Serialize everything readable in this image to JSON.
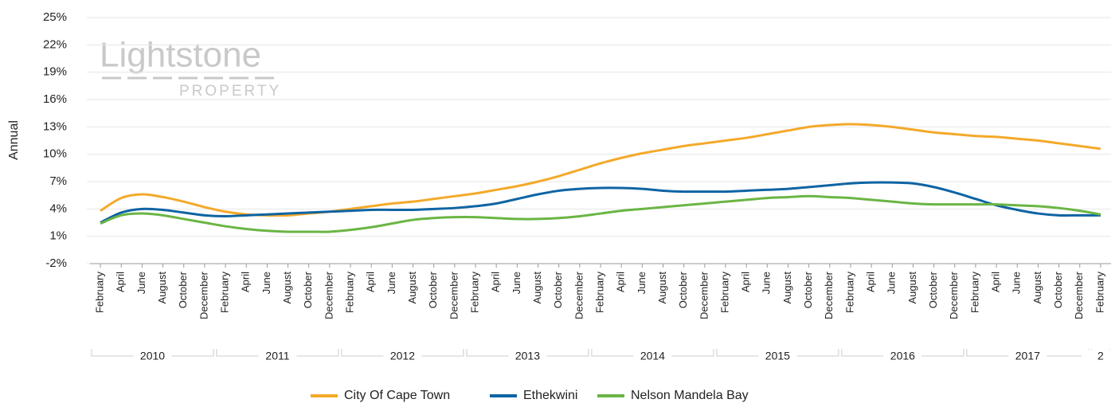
{
  "chart_data": {
    "type": "line",
    "y_label": "Annual",
    "watermark": {
      "title": "Lightstone",
      "subtitle": "PROPERTY"
    },
    "categories": [
      "February",
      "April",
      "June",
      "August",
      "October",
      "December",
      "February",
      "April",
      "June",
      "August",
      "October",
      "December",
      "February",
      "April",
      "June",
      "August",
      "October",
      "December",
      "February",
      "April",
      "June",
      "August",
      "October",
      "December",
      "February",
      "April",
      "June",
      "August",
      "October",
      "December",
      "February",
      "April",
      "June",
      "August",
      "October",
      "December",
      "February",
      "April",
      "June",
      "August",
      "October",
      "December",
      "February",
      "April",
      "June",
      "August",
      "October",
      "December",
      "February"
    ],
    "year_groups": [
      "2010",
      "2011",
      "2012",
      "2013",
      "2014",
      "2015",
      "2016",
      "2017",
      "2"
    ],
    "ylim": [
      -2,
      25
    ],
    "yticks": [
      {
        "value": -2,
        "label": "-2%"
      },
      {
        "value": 1,
        "label": "1%"
      },
      {
        "value": 4,
        "label": "4%"
      },
      {
        "value": 7,
        "label": "7%"
      },
      {
        "value": 10,
        "label": "10%"
      },
      {
        "value": 13,
        "label": "13%"
      },
      {
        "value": 16,
        "label": "16%"
      },
      {
        "value": 19,
        "label": "19%"
      },
      {
        "value": 22,
        "label": "22%"
      },
      {
        "value": 25,
        "label": "25%"
      }
    ],
    "grid": true,
    "legend": "bottom",
    "series": [
      {
        "name": "City Of Cape Town",
        "color": "#f4a92a",
        "values": [
          3.8,
          5.2,
          5.6,
          5.3,
          4.8,
          4.2,
          3.7,
          3.4,
          3.3,
          3.3,
          3.5,
          3.7,
          4.0,
          4.3,
          4.6,
          4.8,
          5.1,
          5.4,
          5.7,
          6.1,
          6.5,
          7.0,
          7.6,
          8.3,
          9.0,
          9.6,
          10.1,
          10.5,
          10.9,
          11.2,
          11.5,
          11.8,
          12.2,
          12.6,
          13.0,
          13.2,
          13.3,
          13.2,
          13.0,
          12.7,
          12.4,
          12.2,
          12.0,
          11.9,
          11.7,
          11.5,
          11.2,
          10.9,
          10.6
        ]
      },
      {
        "name": "Ethekwini",
        "color": "#0e64a3",
        "values": [
          2.5,
          3.6,
          4.0,
          3.9,
          3.6,
          3.3,
          3.2,
          3.3,
          3.4,
          3.5,
          3.6,
          3.7,
          3.8,
          3.9,
          3.9,
          3.9,
          4.0,
          4.1,
          4.3,
          4.6,
          5.1,
          5.6,
          6.0,
          6.2,
          6.3,
          6.3,
          6.2,
          6.0,
          5.9,
          5.9,
          5.9,
          6.0,
          6.1,
          6.2,
          6.4,
          6.6,
          6.8,
          6.9,
          6.9,
          6.8,
          6.4,
          5.8,
          5.1,
          4.4,
          3.9,
          3.5,
          3.3,
          3.3,
          3.3
        ]
      },
      {
        "name": "Nelson Mandela Bay",
        "color": "#6ab544",
        "values": [
          2.4,
          3.3,
          3.5,
          3.3,
          2.9,
          2.5,
          2.1,
          1.8,
          1.6,
          1.5,
          1.5,
          1.5,
          1.7,
          2.0,
          2.4,
          2.8,
          3.0,
          3.1,
          3.1,
          3.0,
          2.9,
          2.9,
          3.0,
          3.2,
          3.5,
          3.8,
          4.0,
          4.2,
          4.4,
          4.6,
          4.8,
          5.0,
          5.2,
          5.3,
          5.4,
          5.3,
          5.2,
          5.0,
          4.8,
          4.6,
          4.5,
          4.5,
          4.5,
          4.5,
          4.4,
          4.3,
          4.1,
          3.8,
          3.4
        ]
      }
    ]
  }
}
